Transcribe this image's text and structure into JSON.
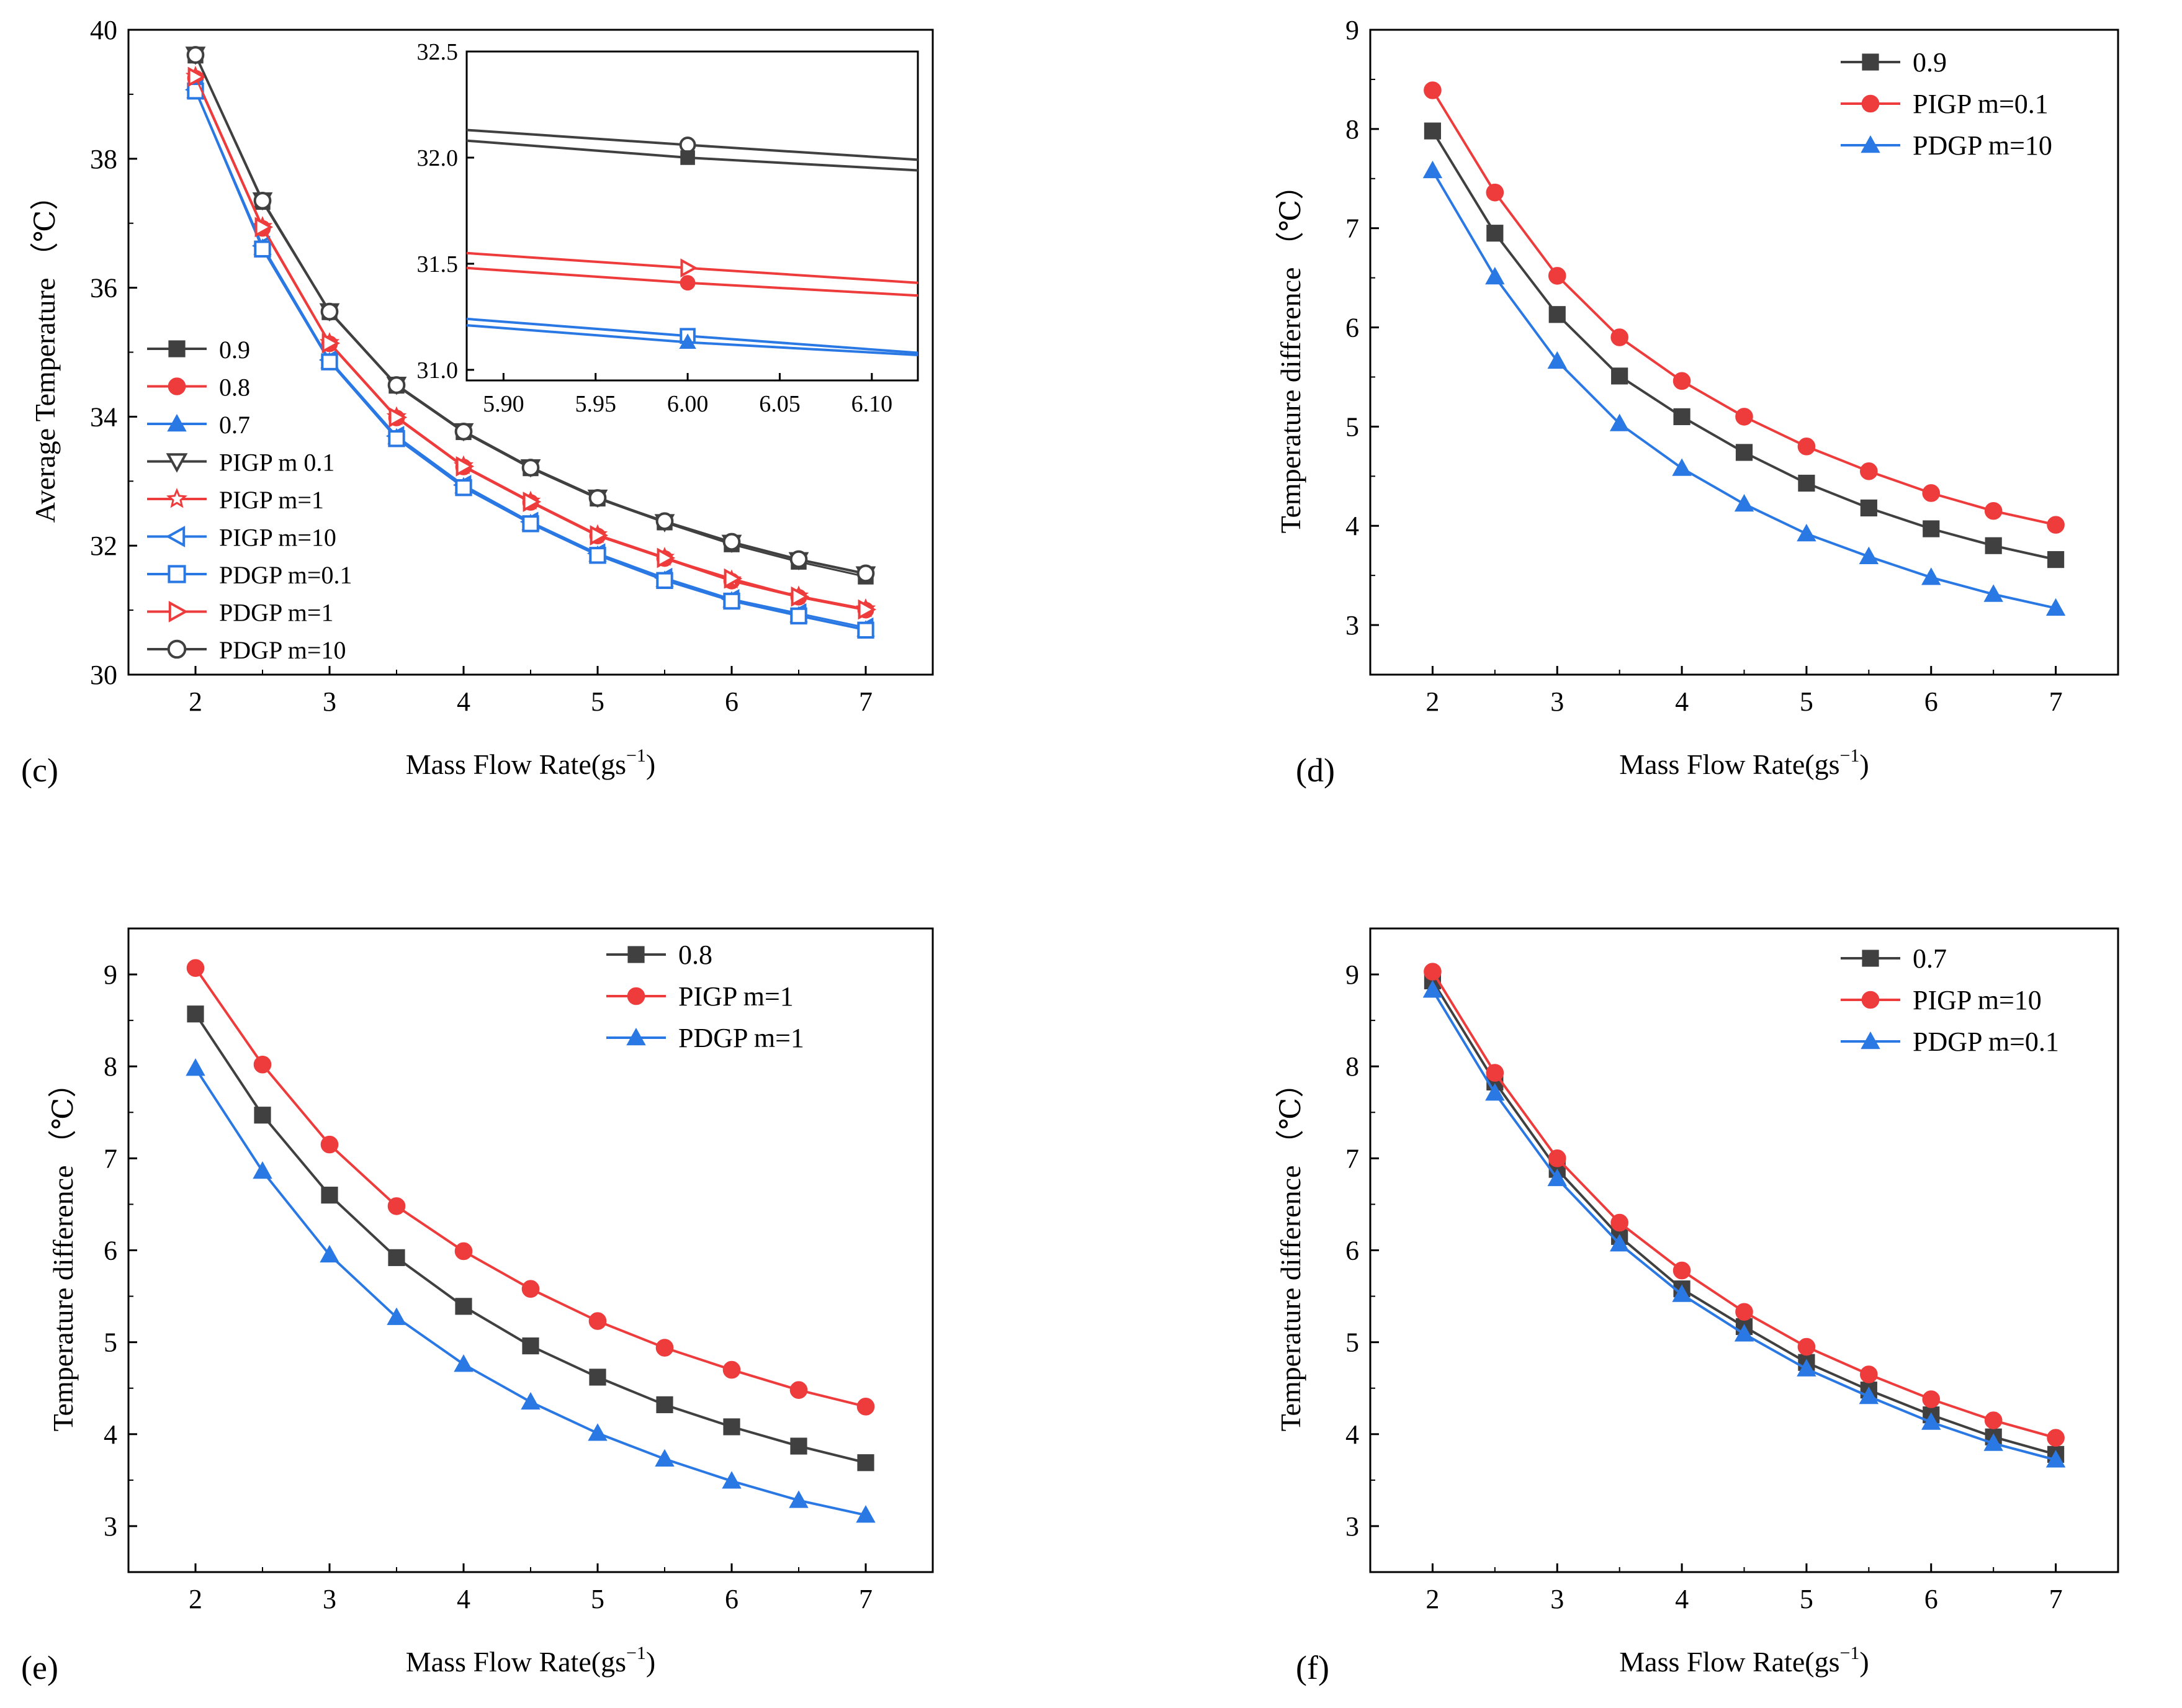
{
  "colors": {
    "black": "#404040",
    "red": "#ee3b3b",
    "blue": "#2a78e4",
    "frame": "#000000"
  },
  "chart_data": [
    {
      "type": "line",
      "panel_label": "(c)",
      "xlabel": "Mass Flow Rate(gs",
      "xlabel_sup": "−1",
      "xlabel_close": ")",
      "ylabel": "Average Temperature （℃）",
      "xlim": [
        1.5,
        7.5
      ],
      "ylim": [
        30,
        40
      ],
      "xticks": [
        2,
        3,
        4,
        5,
        6,
        7
      ],
      "xtick_labels": [
        "2",
        "3",
        "4",
        "5",
        "6",
        "7"
      ],
      "yticks": [
        30,
        32,
        34,
        36,
        38,
        40
      ],
      "ytick_labels": [
        "30",
        "32",
        "34",
        "36",
        "38",
        "40"
      ],
      "x": [
        2,
        2.5,
        3,
        3.5,
        4,
        4.5,
        5,
        5.5,
        6,
        6.5,
        7
      ],
      "series": [
        {
          "name": "0.9",
          "color": "black",
          "marker": "square-filled",
          "values": [
            39.6,
            37.33,
            35.62,
            34.48,
            33.76,
            33.2,
            32.73,
            32.36,
            32.02,
            31.75,
            31.52
          ]
        },
        {
          "name": "0.8",
          "color": "red",
          "marker": "circle-filled",
          "values": [
            39.25,
            36.92,
            35.13,
            33.98,
            33.22,
            32.67,
            32.15,
            31.8,
            31.45,
            31.2,
            31.0
          ]
        },
        {
          "name": "0.7",
          "color": "blue",
          "marker": "triangle-filled",
          "values": [
            39.05,
            36.62,
            34.86,
            33.68,
            32.92,
            32.35,
            31.86,
            31.47,
            31.15,
            30.92,
            30.7
          ]
        },
        {
          "name": "PIGP m  0.1",
          "color": "black",
          "marker": "triangle-down-open",
          "values": [
            39.62,
            37.36,
            35.64,
            34.5,
            33.78,
            33.22,
            32.75,
            32.37,
            32.05,
            31.78,
            31.56
          ]
        },
        {
          "name": "PIGP m=1",
          "color": "red",
          "marker": "star-open",
          "values": [
            39.28,
            36.95,
            35.15,
            34.0,
            33.24,
            32.69,
            32.17,
            31.82,
            31.47,
            31.22,
            31.02
          ]
        },
        {
          "name": "PIGP m=10",
          "color": "blue",
          "marker": "triangle-left-open",
          "values": [
            39.07,
            36.65,
            34.88,
            33.7,
            32.94,
            32.37,
            31.88,
            31.5,
            31.17,
            30.95,
            30.73
          ]
        },
        {
          "name": "PDGP m=0.1",
          "color": "blue",
          "marker": "square-open",
          "values": [
            39.05,
            36.6,
            34.85,
            33.66,
            32.9,
            32.34,
            31.85,
            31.46,
            31.14,
            30.91,
            30.69
          ]
        },
        {
          "name": "PDGP m=1",
          "color": "red",
          "marker": "triangle-right-open",
          "values": [
            39.27,
            36.94,
            35.14,
            33.99,
            33.23,
            32.68,
            32.16,
            31.81,
            31.49,
            31.21,
            31.01
          ]
        },
        {
          "name": "PDGP m=10",
          "color": "black",
          "marker": "circle-open",
          "values": [
            39.61,
            37.35,
            35.63,
            34.49,
            33.77,
            33.21,
            32.74,
            32.38,
            32.06,
            31.79,
            31.57
          ]
        }
      ],
      "inset": {
        "xlim": [
          5.88,
          6.125
        ],
        "ylim": [
          30.95,
          32.5
        ],
        "xticks": [
          5.9,
          5.95,
          6.0,
          6.05,
          6.1
        ],
        "xtick_labels": [
          "5.90",
          "5.95",
          "6.00",
          "6.05",
          "6.10"
        ],
        "yticks": [
          31.0,
          31.5,
          32.0,
          32.5
        ],
        "ytick_labels": [
          "31.0",
          "31.5",
          "32.0",
          "32.5"
        ],
        "lines": [
          {
            "color": "black",
            "x": [
              5.88,
              6.0,
              6.125
            ],
            "values": [
              32.13,
              32.06,
              31.99
            ],
            "marker": "circle-open"
          },
          {
            "color": "black",
            "x": [
              5.88,
              6.0,
              6.125
            ],
            "values": [
              32.08,
              32.0,
              31.94
            ],
            "marker": "square-filled"
          },
          {
            "color": "red",
            "x": [
              5.88,
              6.0,
              6.125
            ],
            "values": [
              31.55,
              31.48,
              31.41
            ],
            "marker": "triangle-right-open"
          },
          {
            "color": "red",
            "x": [
              5.88,
              6.0,
              6.125
            ],
            "values": [
              31.48,
              31.41,
              31.35
            ],
            "marker": "circle-filled"
          },
          {
            "color": "blue",
            "x": [
              5.88,
              6.0,
              6.125
            ],
            "values": [
              31.24,
              31.16,
              31.08
            ],
            "marker": "square-open"
          },
          {
            "color": "blue",
            "x": [
              5.88,
              6.0,
              6.125
            ],
            "values": [
              31.21,
              31.13,
              31.07
            ],
            "marker": "triangle-filled"
          }
        ]
      }
    },
    {
      "type": "line",
      "panel_label": "(d)",
      "xlabel": "Mass Flow Rate(gs",
      "xlabel_sup": "−1",
      "xlabel_close": ")",
      "ylabel": "Temperature difference （℃）",
      "xlim": [
        1.5,
        7.5
      ],
      "ylim": [
        2.5,
        9
      ],
      "xticks": [
        2,
        3,
        4,
        5,
        6,
        7
      ],
      "xtick_labels": [
        "2",
        "3",
        "4",
        "5",
        "6",
        "7"
      ],
      "yticks": [
        3,
        4,
        5,
        6,
        7,
        8,
        9
      ],
      "ytick_labels": [
        "3",
        "4",
        "5",
        "6",
        "7",
        "8",
        "9"
      ],
      "x": [
        2,
        2.5,
        3,
        3.5,
        4,
        4.5,
        5,
        5.5,
        6,
        6.5,
        7
      ],
      "series": [
        {
          "name": "0.9",
          "color": "black",
          "marker": "square-filled",
          "values": [
            7.98,
            6.95,
            6.13,
            5.51,
            5.1,
            4.74,
            4.43,
            4.18,
            3.97,
            3.8,
            3.66
          ]
        },
        {
          "name": "PIGP m=0.1",
          "color": "red",
          "marker": "circle-filled",
          "values": [
            8.39,
            7.36,
            6.52,
            5.9,
            5.46,
            5.1,
            4.8,
            4.55,
            4.33,
            4.15,
            4.01
          ]
        },
        {
          "name": "PDGP m=10",
          "color": "blue",
          "marker": "triangle-filled",
          "values": [
            7.58,
            6.51,
            5.66,
            5.03,
            4.58,
            4.22,
            3.92,
            3.69,
            3.48,
            3.31,
            3.17
          ]
        }
      ]
    },
    {
      "type": "line",
      "panel_label": "(e)",
      "xlabel": "Mass Flow Rate(gs",
      "xlabel_sup": "−1",
      "xlabel_close": ")",
      "ylabel": "Temperature difference （℃）",
      "xlim": [
        1.5,
        7.5
      ],
      "ylim": [
        2.5,
        9.5
      ],
      "xticks": [
        2,
        3,
        4,
        5,
        6,
        7
      ],
      "xtick_labels": [
        "2",
        "3",
        "4",
        "5",
        "6",
        "7"
      ],
      "yticks": [
        3,
        4,
        5,
        6,
        7,
        8,
        9
      ],
      "ytick_labels": [
        "3",
        "4",
        "5",
        "6",
        "7",
        "8",
        "9"
      ],
      "x": [
        2,
        2.5,
        3,
        3.5,
        4,
        4.5,
        5,
        5.5,
        6,
        6.5,
        7
      ],
      "series": [
        {
          "name": "0.8",
          "color": "black",
          "marker": "square-filled",
          "values": [
            8.57,
            7.47,
            6.6,
            5.92,
            5.39,
            4.96,
            4.62,
            4.32,
            4.08,
            3.87,
            3.69
          ]
        },
        {
          "name": "PIGP m=1",
          "color": "red",
          "marker": "circle-filled",
          "values": [
            9.07,
            8.02,
            7.15,
            6.48,
            5.99,
            5.58,
            5.23,
            4.94,
            4.7,
            4.48,
            4.3
          ]
        },
        {
          "name": "PDGP m=1",
          "color": "blue",
          "marker": "triangle-filled",
          "values": [
            7.98,
            6.86,
            5.95,
            5.27,
            4.76,
            4.35,
            4.01,
            3.73,
            3.49,
            3.28,
            3.12
          ]
        }
      ]
    },
    {
      "type": "line",
      "panel_label": "(f)",
      "xlabel": "Mass Flow Rate(gs",
      "xlabel_sup": "−1",
      "xlabel_close": ")",
      "ylabel": "Temperature difference （℃）",
      "xlim": [
        1.5,
        7.5
      ],
      "ylim": [
        2.5,
        9.5
      ],
      "xticks": [
        2,
        3,
        4,
        5,
        6,
        7
      ],
      "xtick_labels": [
        "2",
        "3",
        "4",
        "5",
        "6",
        "7"
      ],
      "yticks": [
        3,
        4,
        5,
        6,
        7,
        8,
        9
      ],
      "ytick_labels": [
        "3",
        "4",
        "5",
        "6",
        "7",
        "8",
        "9"
      ],
      "x": [
        2,
        2.5,
        3,
        3.5,
        4,
        4.5,
        5,
        5.5,
        6,
        6.5,
        7
      ],
      "series": [
        {
          "name": "0.7",
          "color": "black",
          "marker": "square-filled",
          "values": [
            8.93,
            7.83,
            6.88,
            6.15,
            5.58,
            5.17,
            4.78,
            4.48,
            4.21,
            3.97,
            3.78
          ]
        },
        {
          "name": "PIGP m=10",
          "color": "red",
          "marker": "circle-filled",
          "values": [
            9.03,
            7.93,
            7.0,
            6.3,
            5.78,
            5.33,
            4.95,
            4.65,
            4.38,
            4.15,
            3.96
          ]
        },
        {
          "name": "PDGP m=0.1",
          "color": "blue",
          "marker": "triangle-filled",
          "values": [
            8.83,
            7.71,
            6.78,
            6.07,
            5.52,
            5.09,
            4.71,
            4.41,
            4.13,
            3.9,
            3.72
          ]
        }
      ]
    }
  ]
}
